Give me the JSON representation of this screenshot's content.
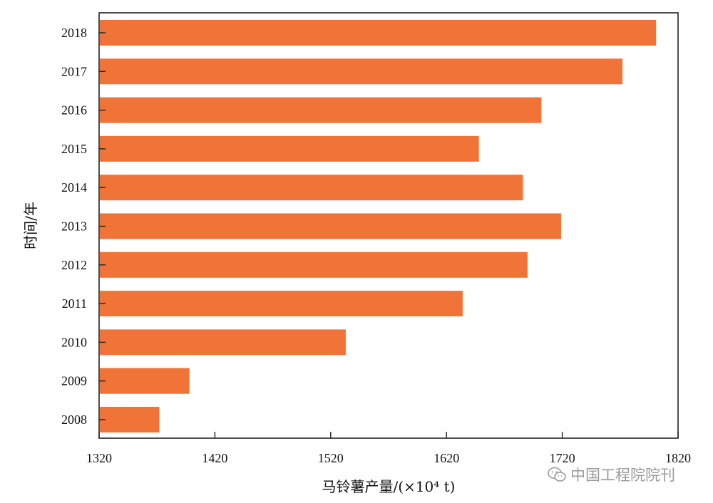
{
  "chart_data": {
    "type": "bar",
    "orientation": "horizontal",
    "categories": [
      "2008",
      "2009",
      "2010",
      "2011",
      "2012",
      "2013",
      "2014",
      "2015",
      "2016",
      "2017",
      "2018"
    ],
    "values": [
      1372,
      1398,
      1533,
      1634,
      1690,
      1719,
      1686,
      1648,
      1702,
      1772,
      1801
    ],
    "xlabel": "马铃薯产量/(×10⁴ t)",
    "ylabel": "时间/年",
    "xlim": [
      1320,
      1820
    ],
    "xticks": [
      "1320",
      "1420",
      "1520",
      "1620",
      "1720",
      "1820"
    ],
    "bar_color": "#f07337",
    "grid": false,
    "legend": false
  },
  "watermark": {
    "text": "中国工程院院刊",
    "icon": "wechat-icon"
  }
}
